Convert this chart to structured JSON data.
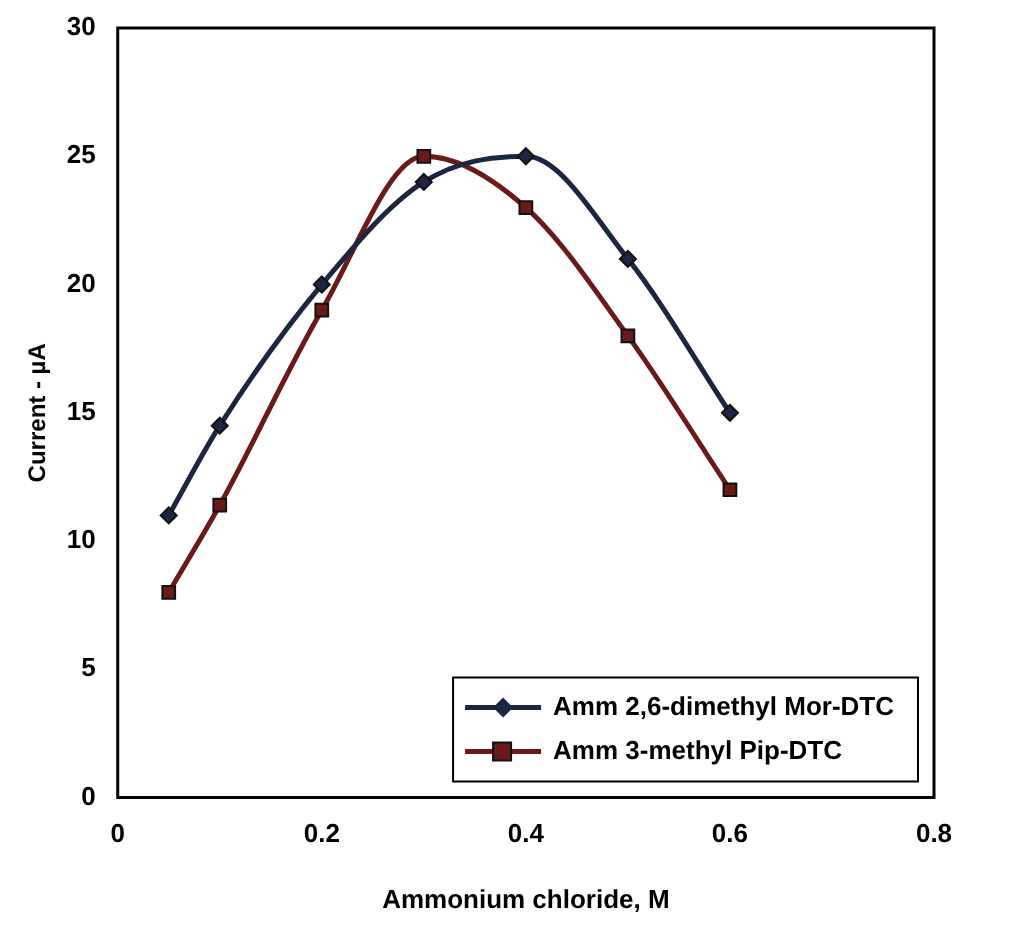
{
  "chart_data": {
    "type": "line",
    "xlabel": "Ammonium chloride, M",
    "ylabel": "Current - µA",
    "x": [
      0.05,
      0.1,
      0.2,
      0.3,
      0.4,
      0.5,
      0.6
    ],
    "series": [
      {
        "name": "Amm 2,6-dimethyl Mor-DTC",
        "color": "#1c2541",
        "marker": "diamond",
        "values": [
          11,
          14.5,
          20,
          24,
          25,
          21,
          15
        ]
      },
      {
        "name": "Amm 3-methyl Pip-DTC",
        "color": "#6b1a1a",
        "marker": "square",
        "values": [
          8,
          11.4,
          19,
          25,
          23,
          18,
          12
        ]
      }
    ],
    "xlim": [
      0,
      0.8
    ],
    "xticks": [
      0,
      0.2,
      0.4,
      0.6,
      0.8
    ],
    "ylim": [
      0,
      30
    ],
    "yticks": [
      0,
      5,
      10,
      15,
      20,
      25,
      30
    ],
    "grid": false,
    "legend": "bottom right",
    "line_style": "solid"
  }
}
